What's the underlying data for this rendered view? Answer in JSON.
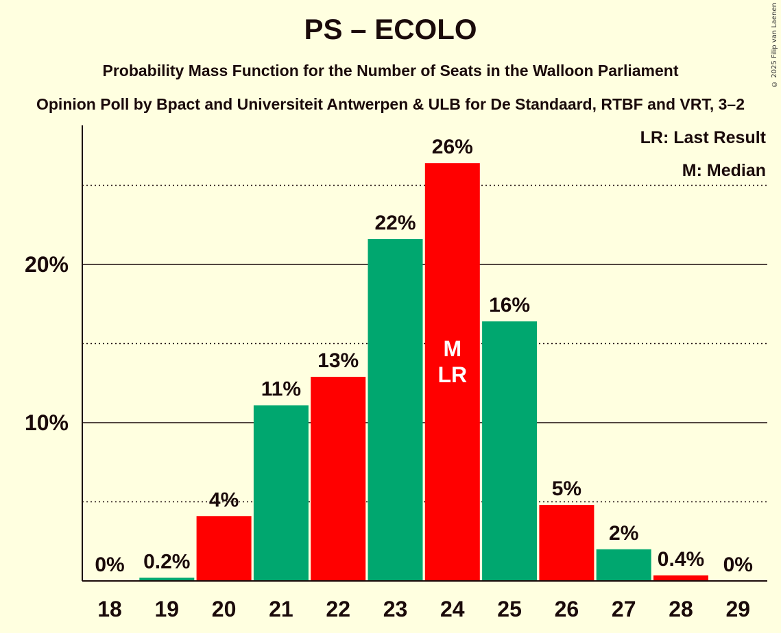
{
  "title": "PS – ECOLO",
  "subtitle": "Probability Mass Function for the Number of Seats in the Walloon Parliament",
  "source": "Opinion Poll by Bpact and Universiteit Antwerpen & ULB for De Standaard, RTBF and VRT, 3–2",
  "copyright": "© 2025 Filip van Laenen",
  "legend": {
    "last_result": "LR: Last Result",
    "median": "M: Median"
  },
  "colors": {
    "background": "#ffffe0",
    "green": "#00a76f",
    "red": "#ff0000",
    "text": "#1a0a0a"
  },
  "chart_data": {
    "type": "bar",
    "title": "PS – ECOLO",
    "xlabel": "",
    "ylabel": "",
    "ylim": [
      0,
      28.5
    ],
    "categories": [
      "18",
      "19",
      "20",
      "21",
      "22",
      "23",
      "24",
      "25",
      "26",
      "27",
      "28",
      "29"
    ],
    "values": [
      0,
      0.2,
      4.1,
      11.1,
      12.9,
      21.6,
      26.4,
      16.4,
      4.8,
      2.0,
      0.35,
      0
    ],
    "labels": [
      "0%",
      "0.2%",
      "4%",
      "11%",
      "13%",
      "22%",
      "26%",
      "16%",
      "5%",
      "2%",
      "0.4%",
      "0%"
    ],
    "bar_colors": [
      "green",
      "green",
      "red",
      "green",
      "red",
      "green",
      "red",
      "green",
      "red",
      "green",
      "red",
      "green"
    ],
    "y_ticks": [
      {
        "value": 10,
        "label": "10%"
      },
      {
        "value": 20,
        "label": "20%"
      }
    ],
    "minor_gridlines": [
      5,
      15,
      25
    ],
    "median_index": 6,
    "last_result_index": 6,
    "median_marker": "M",
    "last_result_marker": "LR"
  }
}
